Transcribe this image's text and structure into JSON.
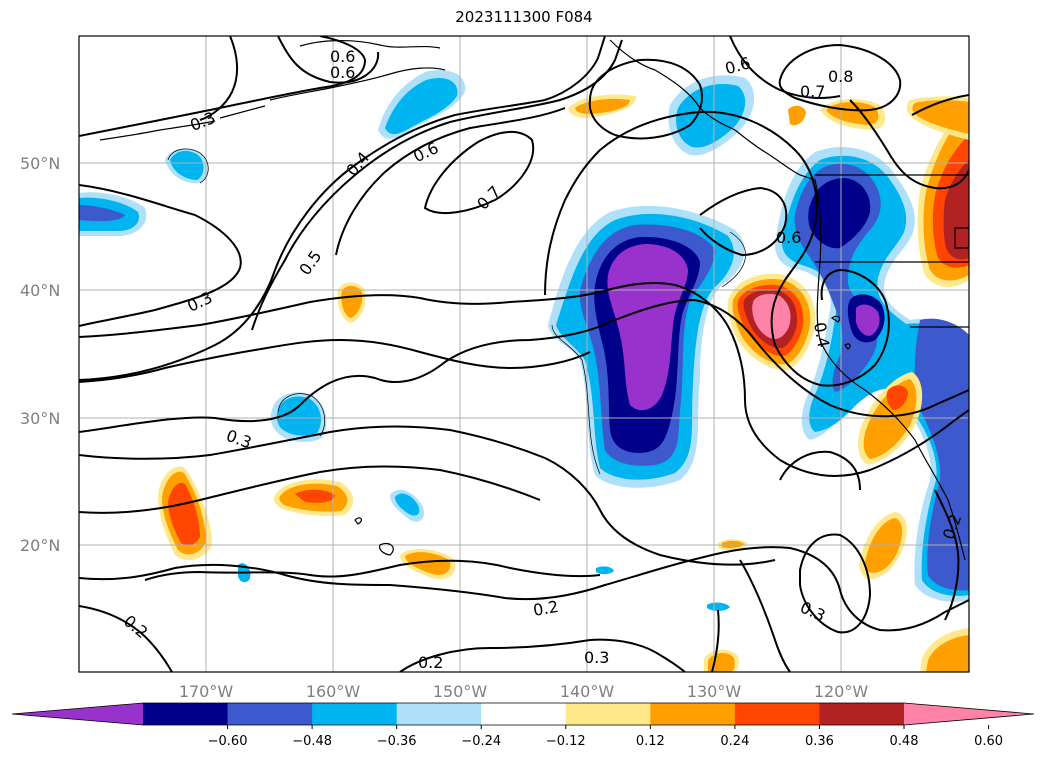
{
  "title": "2023111300 F084",
  "lat_labels": [
    "50°N",
    "40°N",
    "30°N",
    "20°N"
  ],
  "lon_labels": [
    "170°W",
    "160°W",
    "150°W",
    "140°W",
    "130°W",
    "120°W"
  ],
  "contour_labels": [
    "0.3",
    "0.6",
    "0.6",
    "0.7",
    "0.8",
    "0.6",
    "0.6",
    "0.4",
    "0.5",
    "0.3",
    "0.7",
    "0.6",
    "0.4",
    "0.3",
    "0.2",
    "0.2",
    "0.3",
    "0.2",
    "0.3",
    "0.2"
  ],
  "colorbar": {
    "tick_labels": [
      "−0.60",
      "−0.48",
      "−0.36",
      "−0.24",
      "−0.12",
      "0.12",
      "0.24",
      "0.36",
      "0.48",
      "0.60"
    ],
    "colors": [
      "#9932cc",
      "#00008b",
      "#3c5acd",
      "#00b4f0",
      "#aee0fa",
      "#ffffff",
      "#ffe88a",
      "#ffa000",
      "#ff4500",
      "#b22222",
      "#ff82a8"
    ]
  }
}
